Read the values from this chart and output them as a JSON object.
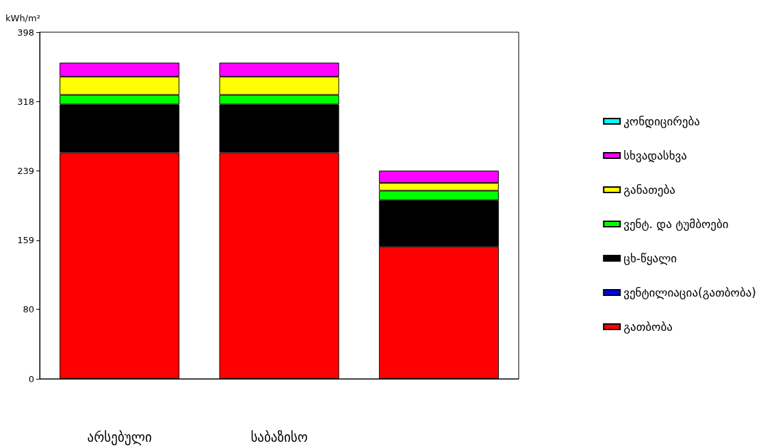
{
  "chart_data": {
    "type": "bar",
    "stacked": true,
    "ylabel": "kWh/m²",
    "categories": [
      "არსებული",
      "საბაზისო",
      null
    ],
    "ylim": [
      0,
      398
    ],
    "yticks": [
      0,
      80,
      159,
      239,
      318,
      398
    ],
    "grid": false,
    "legend": "right",
    "series": [
      {
        "name": "გათბობა",
        "color": "#ff0000",
        "values": [
          260,
          260,
          152
        ]
      },
      {
        "name": "ვენტილიაცია(გათბობა)",
        "color": "#0000ff",
        "values": [
          0,
          0,
          0
        ]
      },
      {
        "name": "ცხ-წყალი",
        "color": "#000000",
        "values": [
          55,
          55,
          53
        ]
      },
      {
        "name": "ვენტ. და ტუმბოები",
        "color": "#00ff00",
        "values": [
          11,
          11,
          11
        ]
      },
      {
        "name": "განათება",
        "color": "#ffff00",
        "values": [
          21,
          21,
          9
        ]
      },
      {
        "name": "სხვადასხვა",
        "color": "#ff00ff",
        "values": [
          16,
          16,
          14
        ]
      },
      {
        "name": "კონდიცირება",
        "color": "#00ffff",
        "values": [
          0,
          0,
          0
        ]
      }
    ]
  }
}
